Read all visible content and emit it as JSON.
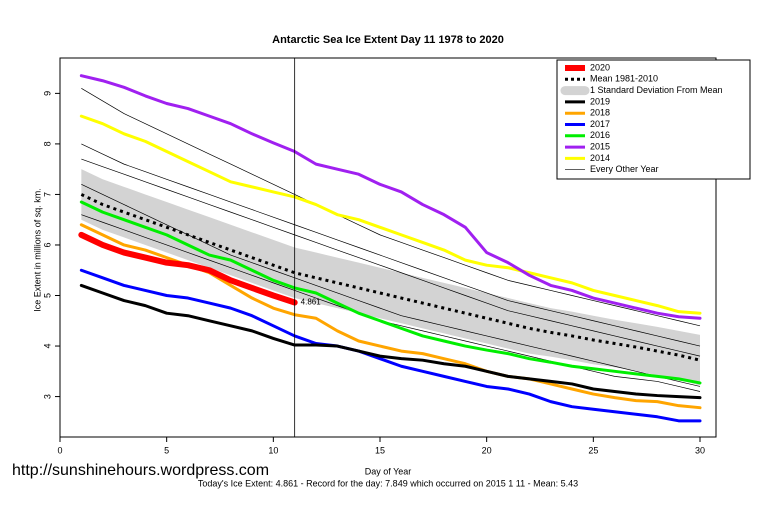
{
  "chart_data": {
    "type": "line",
    "title": "Antarctic Sea Ice Extent Day 11 1978 to 2020",
    "xlabel": "Day of Year",
    "ylabel": "Ice Extent in millions of sq. km.",
    "watermark": "http://sunshinehours.wordpress.com",
    "footer": "Today's Ice Extent: 4.861  - Record for the day: 7.849 which occurred on 2015 1 11  - Mean: 5.43",
    "annotation": "4.861",
    "vline": 11,
    "xlim": [
      0,
      30.75
    ],
    "ylim": [
      2.2,
      9.7
    ],
    "xticks": [
      0,
      5,
      10,
      15,
      20,
      25,
      30
    ],
    "yticks": [
      3,
      4,
      5,
      6,
      7,
      8,
      9
    ],
    "legend": "top-right",
    "x": [
      1,
      2,
      3,
      4,
      5,
      6,
      7,
      8,
      9,
      10,
      11,
      12,
      13,
      14,
      15,
      16,
      17,
      18,
      19,
      20,
      21,
      22,
      23,
      24,
      25,
      26,
      27,
      28,
      29,
      30
    ],
    "series": [
      {
        "name": "2020",
        "color": "#ff0000",
        "line_width": 6,
        "values": [
          6.2,
          6.0,
          5.85,
          5.75,
          5.65,
          5.6,
          5.5,
          5.3,
          5.15,
          5.0,
          4.861,
          null,
          null,
          null,
          null,
          null,
          null,
          null,
          null,
          null,
          null,
          null,
          null,
          null,
          null,
          null,
          null,
          null,
          null,
          null
        ]
      },
      {
        "name": "Mean 1981-2010",
        "color": "#000000",
        "line_width": 3,
        "dashed": true,
        "values": [
          7.0,
          6.8,
          6.65,
          6.5,
          6.35,
          6.2,
          6.05,
          5.9,
          5.75,
          5.6,
          5.45,
          5.35,
          5.25,
          5.15,
          5.05,
          4.95,
          4.85,
          4.75,
          4.65,
          4.55,
          4.45,
          4.35,
          4.27,
          4.2,
          4.12,
          4.05,
          3.98,
          3.9,
          3.82,
          3.72
        ]
      },
      {
        "name": "1 Standard Deviation From Mean",
        "color": "#d3d3d3",
        "band": true,
        "upper": [
          7.5,
          7.3,
          7.15,
          7.0,
          6.85,
          6.7,
          6.55,
          6.4,
          6.25,
          6.1,
          5.95,
          5.85,
          5.75,
          5.65,
          5.55,
          5.45,
          5.35,
          5.25,
          5.15,
          5.05,
          4.95,
          4.85,
          4.75,
          4.68,
          4.6,
          4.52,
          4.45,
          4.38,
          4.3,
          4.22
        ],
        "lower": [
          6.5,
          6.3,
          6.15,
          6.0,
          5.85,
          5.7,
          5.55,
          5.4,
          5.25,
          5.1,
          4.95,
          4.85,
          4.75,
          4.65,
          4.55,
          4.45,
          4.35,
          4.25,
          4.15,
          4.05,
          3.95,
          3.85,
          3.79,
          3.72,
          3.64,
          3.58,
          3.51,
          3.42,
          3.34,
          3.22
        ]
      },
      {
        "name": "2019",
        "color": "#000000",
        "line_width": 3,
        "values": [
          5.2,
          5.05,
          4.9,
          4.8,
          4.65,
          4.6,
          4.5,
          4.4,
          4.3,
          4.15,
          4.02,
          4.02,
          4.0,
          3.9,
          3.8,
          3.75,
          3.72,
          3.65,
          3.6,
          3.5,
          3.4,
          3.35,
          3.3,
          3.25,
          3.15,
          3.1,
          3.05,
          3.02,
          3.0,
          2.98
        ]
      },
      {
        "name": "2018",
        "color": "#ffa500",
        "line_width": 3,
        "values": [
          6.4,
          6.2,
          6.0,
          5.9,
          5.75,
          5.6,
          5.45,
          5.2,
          4.95,
          4.75,
          4.62,
          4.55,
          4.3,
          4.1,
          4.0,
          3.9,
          3.85,
          3.75,
          3.65,
          3.5,
          3.4,
          3.35,
          3.25,
          3.15,
          3.05,
          2.98,
          2.92,
          2.9,
          2.82,
          2.78
        ]
      },
      {
        "name": "2017",
        "color": "#0000ff",
        "line_width": 3,
        "values": [
          5.5,
          5.35,
          5.2,
          5.1,
          5.0,
          4.95,
          4.85,
          4.75,
          4.6,
          4.4,
          4.2,
          4.05,
          4.0,
          3.9,
          3.75,
          3.6,
          3.5,
          3.4,
          3.3,
          3.2,
          3.15,
          3.05,
          2.9,
          2.8,
          2.75,
          2.7,
          2.65,
          2.6,
          2.52,
          2.52
        ]
      },
      {
        "name": "2016",
        "color": "#00ee00",
        "line_width": 3,
        "values": [
          6.85,
          6.65,
          6.5,
          6.35,
          6.2,
          6.0,
          5.8,
          5.7,
          5.5,
          5.3,
          5.15,
          5.05,
          4.85,
          4.65,
          4.5,
          4.35,
          4.2,
          4.1,
          4.0,
          3.92,
          3.85,
          3.75,
          3.68,
          3.6,
          3.55,
          3.5,
          3.45,
          3.4,
          3.35,
          3.27
        ]
      },
      {
        "name": "2015",
        "color": "#a020f0",
        "line_width": 3,
        "values": [
          9.35,
          9.25,
          9.12,
          8.95,
          8.8,
          8.7,
          8.55,
          8.4,
          8.2,
          8.02,
          7.849,
          7.6,
          7.5,
          7.4,
          7.2,
          7.05,
          6.8,
          6.6,
          6.35,
          5.85,
          5.65,
          5.4,
          5.2,
          5.1,
          4.95,
          4.85,
          4.75,
          4.65,
          4.58,
          4.55
        ]
      },
      {
        "name": "2014",
        "color": "#ffff00",
        "line_width": 3,
        "values": [
          8.55,
          8.4,
          8.2,
          8.05,
          7.85,
          7.65,
          7.45,
          7.25,
          7.15,
          7.05,
          6.95,
          6.8,
          6.6,
          6.5,
          6.35,
          6.2,
          6.05,
          5.9,
          5.7,
          5.6,
          5.55,
          5.45,
          5.35,
          5.25,
          5.1,
          5.0,
          4.9,
          4.8,
          4.68,
          4.65
        ]
      },
      {
        "name": "Every Other Year",
        "color": "#000000",
        "line_width": 0.7,
        "lines": [
          [
            9.1,
            8.85,
            8.6,
            8.4,
            8.2,
            8.0,
            7.8,
            7.6,
            7.4,
            7.2,
            7.0,
            6.8,
            6.6,
            6.4,
            6.2,
            6.05,
            5.9,
            5.75,
            5.6,
            5.45,
            5.3,
            5.2,
            5.1,
            5.0,
            4.9,
            4.8,
            4.7,
            4.6,
            4.5,
            4.4
          ],
          [
            8.0,
            7.8,
            7.6,
            7.45,
            7.3,
            7.15,
            7.0,
            6.85,
            6.7,
            6.55,
            6.4,
            6.25,
            6.1,
            5.95,
            5.8,
            5.65,
            5.5,
            5.35,
            5.2,
            5.05,
            4.9,
            4.8,
            4.7,
            4.6,
            4.5,
            4.4,
            4.3,
            4.2,
            4.1,
            4.0
          ],
          [
            7.7,
            7.55,
            7.4,
            7.25,
            7.1,
            6.95,
            6.8,
            6.65,
            6.5,
            6.35,
            6.2,
            6.05,
            5.9,
            5.75,
            5.6,
            5.45,
            5.3,
            5.15,
            5.0,
            4.85,
            4.7,
            4.6,
            4.5,
            4.4,
            4.3,
            4.2,
            4.1,
            4.0,
            3.9,
            3.8
          ],
          [
            7.2,
            7.0,
            6.8,
            6.6,
            6.4,
            6.2,
            6.0,
            5.8,
            5.65,
            5.5,
            5.35,
            5.2,
            5.05,
            4.9,
            4.75,
            4.6,
            4.5,
            4.4,
            4.3,
            4.2,
            4.1,
            4.0,
            3.9,
            3.8,
            3.7,
            3.6,
            3.5,
            3.4,
            3.3,
            3.2
          ],
          [
            6.6,
            6.45,
            6.3,
            6.15,
            6.0,
            5.85,
            5.7,
            5.55,
            5.4,
            5.25,
            5.1,
            4.95,
            4.8,
            4.65,
            4.5,
            4.4,
            4.3,
            4.2,
            4.1,
            4.0,
            3.9,
            3.8,
            3.7,
            3.6,
            3.5,
            3.4,
            3.35,
            3.3,
            3.2,
            3.1
          ]
        ]
      }
    ]
  }
}
